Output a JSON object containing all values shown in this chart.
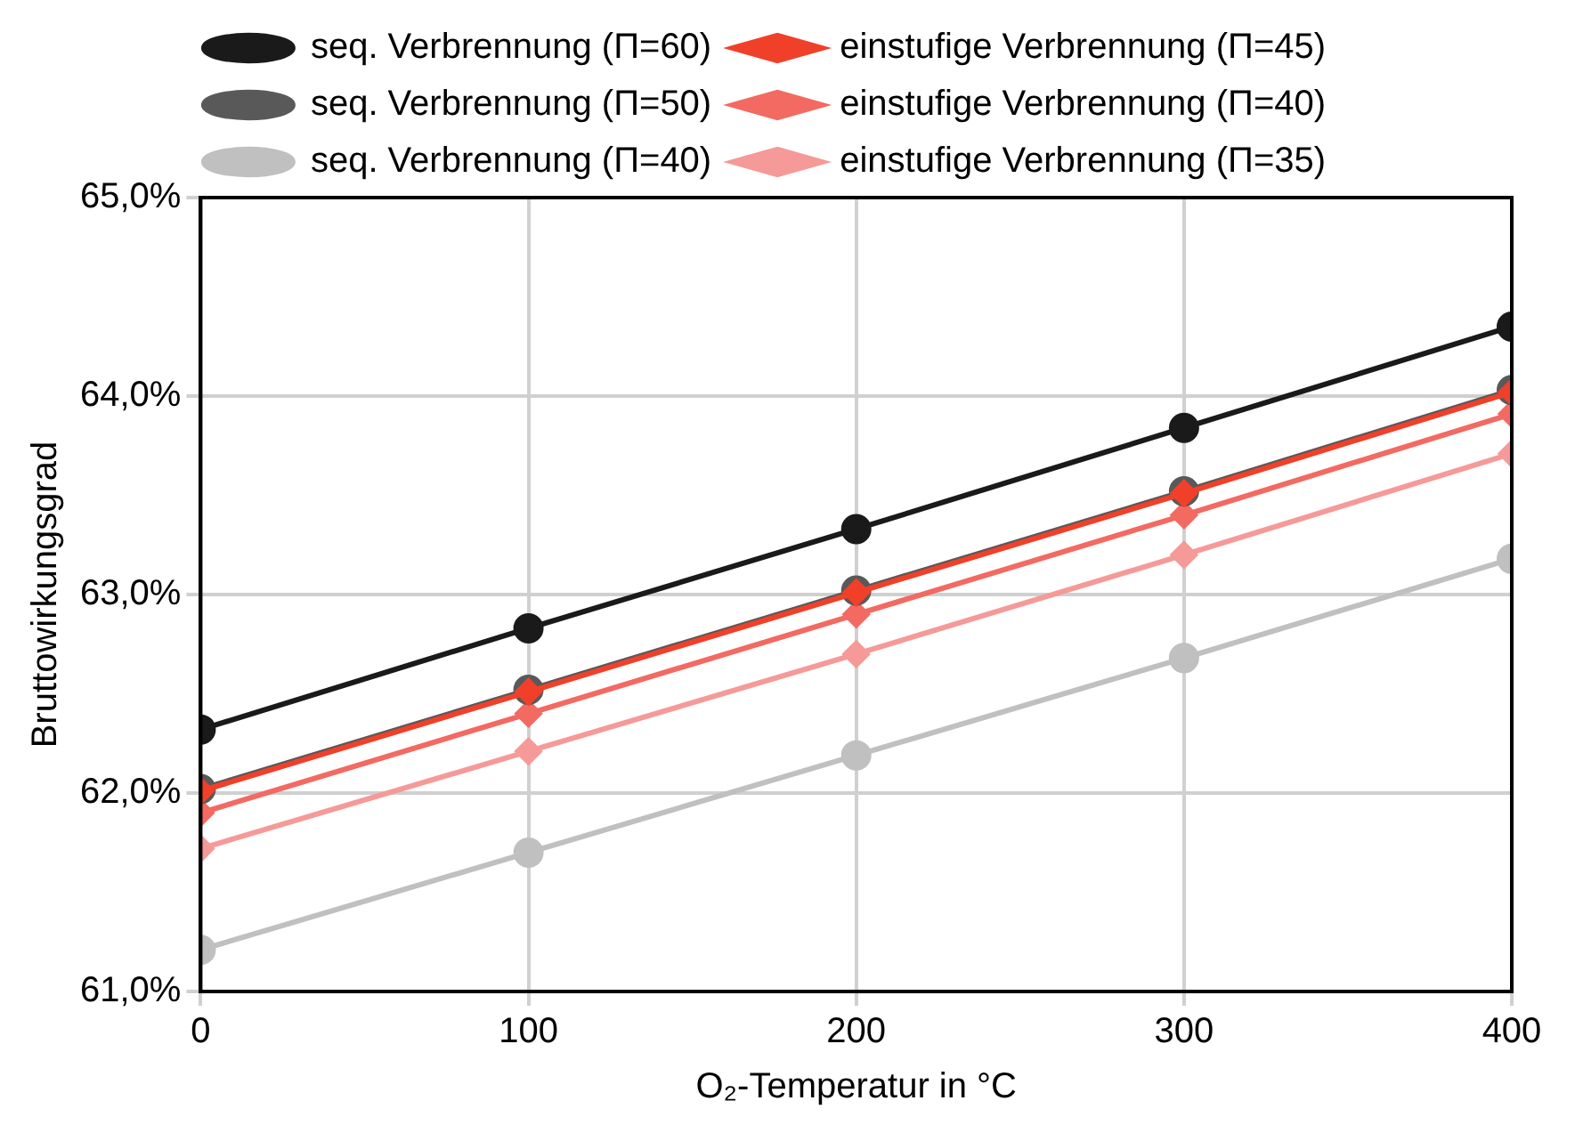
{
  "chart_data": {
    "type": "line",
    "xlabel": "O₂-Temperatur in °C",
    "ylabel": "Bruttowirkungsgrad",
    "x": [
      0,
      100,
      200,
      300,
      400
    ],
    "xlim": [
      0,
      400
    ],
    "xticks": [
      0,
      100,
      200,
      300,
      400
    ],
    "ylim": [
      61,
      65
    ],
    "yticks": [
      {
        "value": 61,
        "label": "61,0%"
      },
      {
        "value": 62,
        "label": "62,0%"
      },
      {
        "value": 63,
        "label": "63,0%"
      },
      {
        "value": 64,
        "label": "64,0%"
      },
      {
        "value": 65,
        "label": "65,0%"
      }
    ],
    "grid": true,
    "legend": "top",
    "series": [
      {
        "name": "seq. Verbrennung (Π=60)",
        "color": "#1a1a1a",
        "marker": "circle",
        "values": [
          62.32,
          62.83,
          63.33,
          63.84,
          64.35
        ]
      },
      {
        "name": "einstufige Verbrennung (Π=45)",
        "color": "#f0402a",
        "marker": "diamond",
        "values": [
          62.01,
          62.51,
          63.01,
          63.51,
          64.02
        ]
      },
      {
        "name": "seq. Verbrennung (Π=50)",
        "color": "#595959",
        "marker": "circle",
        "values": [
          62.02,
          62.52,
          63.02,
          63.52,
          64.03
        ]
      },
      {
        "name": "einstufige Verbrennung (Π=40)",
        "color": "#f26a62",
        "marker": "diamond",
        "values": [
          61.9,
          62.4,
          62.9,
          63.4,
          63.91
        ]
      },
      {
        "name": "seq. Verbrennung (Π=40)",
        "color": "#c0c0c0",
        "marker": "circle",
        "values": [
          61.21,
          61.7,
          62.19,
          62.68,
          63.18
        ]
      },
      {
        "name": "einstufige Verbrennung (Π=35)",
        "color": "#f59a98",
        "marker": "diamond",
        "values": [
          61.72,
          62.21,
          62.7,
          63.2,
          63.71
        ]
      }
    ]
  }
}
